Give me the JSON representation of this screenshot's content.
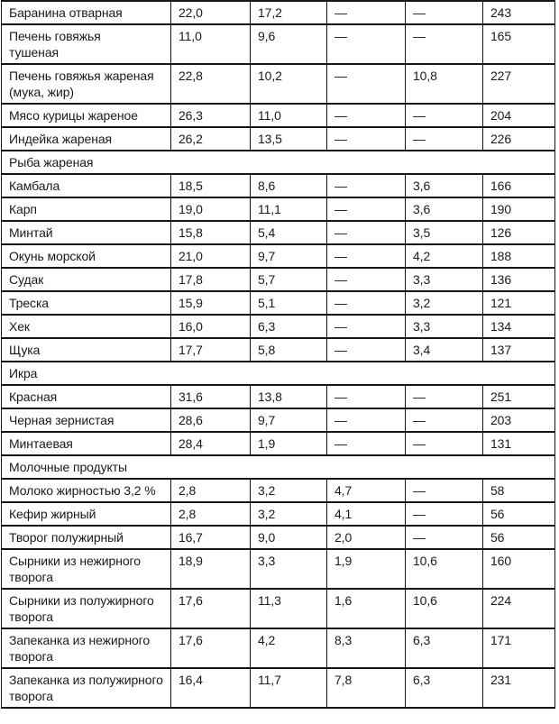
{
  "colors": {
    "ink": "#1a1a1a",
    "paper": "#ffffff",
    "rule": "#161616"
  },
  "table": {
    "visible_header": null,
    "value_columns_count": 5,
    "missing_value_glyph": "—",
    "rows": [
      {
        "type": "item",
        "name": "Баранина отварная",
        "values": [
          "22,0",
          "17,2",
          "—",
          "—",
          "243"
        ]
      },
      {
        "type": "item",
        "name": "Печень говяжья\nтушеная",
        "values": [
          "11,0",
          "9,6",
          "—",
          "—",
          "165"
        ]
      },
      {
        "type": "item",
        "name": "Печень говяжья жареная\n(мука, жир)",
        "values": [
          "22,8",
          "10,2",
          "—",
          "10,8",
          "227"
        ]
      },
      {
        "type": "item",
        "name": "Мясо курицы жареное",
        "values": [
          "26,3",
          "11,0",
          "—",
          "—",
          "204"
        ]
      },
      {
        "type": "item",
        "name": "Индейка жареная",
        "values": [
          "26,2",
          "13,5",
          "—",
          "—",
          "226"
        ]
      },
      {
        "type": "section",
        "name": "Рыба жареная"
      },
      {
        "type": "item",
        "name": "Камбала",
        "values": [
          "18,5",
          "8,6",
          "—",
          "3,6",
          "166"
        ]
      },
      {
        "type": "item",
        "name": "Карп",
        "values": [
          "19,0",
          "11,1",
          "—",
          "3,6",
          "190"
        ]
      },
      {
        "type": "item",
        "name": "Минтай",
        "values": [
          "15,8",
          "5,4",
          "—",
          "3,5",
          "126"
        ]
      },
      {
        "type": "item",
        "name": "Окунь морской",
        "values": [
          "21,0",
          "9,7",
          "—",
          "4,2",
          "188"
        ]
      },
      {
        "type": "item",
        "name": "Судак",
        "values": [
          "17,8",
          "5,7",
          "—",
          "3,3",
          "136"
        ]
      },
      {
        "type": "item",
        "name": "Треска",
        "values": [
          "15,9",
          "5,1",
          "—",
          "3,2",
          "121"
        ]
      },
      {
        "type": "item",
        "name": "Хек",
        "values": [
          "16,0",
          "6,3",
          "—",
          "3,3",
          "134"
        ]
      },
      {
        "type": "item",
        "name": "Щука",
        "values": [
          "17,7",
          "5,8",
          "—",
          "3,4",
          "137"
        ]
      },
      {
        "type": "section",
        "name": "Икра"
      },
      {
        "type": "item",
        "name": "Красная",
        "values": [
          "31,6",
          "13,8",
          "—",
          "—",
          "251"
        ]
      },
      {
        "type": "item",
        "name": "Черная зернистая",
        "values": [
          "28,6",
          "9,7",
          "—",
          "—",
          "203"
        ]
      },
      {
        "type": "item",
        "name": "Минтаевая",
        "values": [
          "28,4",
          "1,9",
          "—",
          "—",
          "131"
        ]
      },
      {
        "type": "section",
        "name": "Молочные продукты"
      },
      {
        "type": "item",
        "name": "Молоко жирностью 3,2 %",
        "values": [
          "2,8",
          "3,2",
          "4,7",
          "—",
          "58"
        ]
      },
      {
        "type": "item",
        "name": "Кефир жирный",
        "values": [
          "2,8",
          "3,2",
          "4,1",
          "—",
          "56"
        ]
      },
      {
        "type": "item",
        "name": "Творог полужирный",
        "values": [
          "16,7",
          "9,0",
          "2,0",
          "—",
          "56"
        ]
      },
      {
        "type": "item",
        "name": "Сырники из нежирного\nтворога",
        "values": [
          "18,9",
          "3,3",
          "1,9",
          "10,6",
          "160"
        ]
      },
      {
        "type": "item",
        "name": "Сырники из полужирного\nтворога",
        "values": [
          "17,6",
          "11,3",
          "1,6",
          "10,6",
          "224"
        ]
      },
      {
        "type": "item",
        "name": "Запеканка из нежирного\nтворога",
        "values": [
          "17,6",
          "4,2",
          "8,3",
          "6,3",
          "171"
        ]
      },
      {
        "type": "item",
        "name": "Запеканка из полужирного\nтворога",
        "values": [
          "16,4",
          "11,7",
          "7,8",
          "6,3",
          "231"
        ]
      }
    ]
  }
}
